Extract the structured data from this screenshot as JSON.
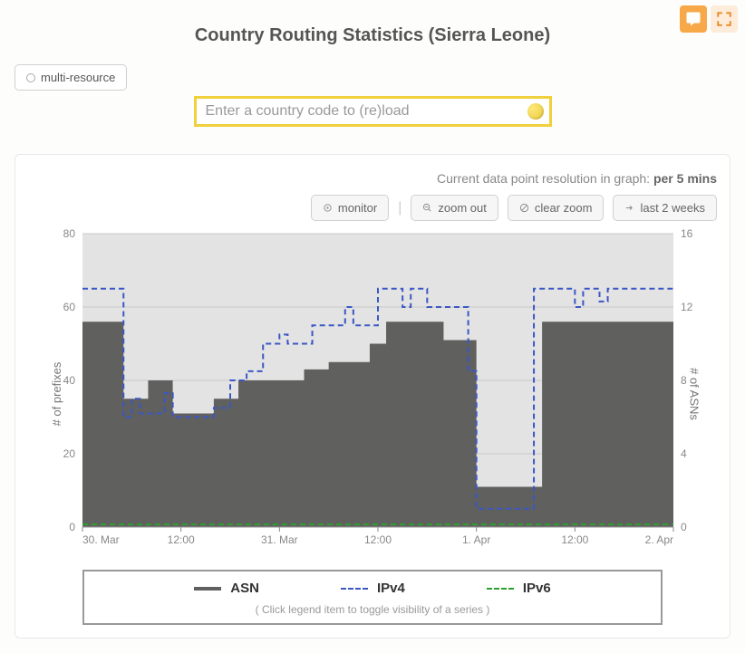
{
  "header": {
    "title": "Country Routing Statistics (Sierra Leone)"
  },
  "tag": {
    "label": "multi-resource"
  },
  "search": {
    "placeholder": "Enter a country code to (re)load",
    "value": ""
  },
  "resolution": {
    "prefix": "Current data point resolution in graph: ",
    "value": "per 5 mins"
  },
  "toolbar": {
    "monitor": "monitor",
    "zoom_out": "zoom out",
    "clear_zoom": "clear zoom",
    "last_2_weeks": "last 2 weeks"
  },
  "chart": {
    "type": "dual-axis-area-line",
    "background_color": "#ffffff",
    "plot_background_color": "#e3e3e3",
    "grid_color": "#c8c8c8",
    "label_color": "#888888",
    "label_fontsize": 12,
    "y_left": {
      "label": "# of prefixes",
      "min": 0,
      "max": 80,
      "tick_step": 20
    },
    "y_right": {
      "label": "# of ASNs",
      "min": 0,
      "max": 16,
      "tick_step": 4
    },
    "x": {
      "t_min": 0,
      "t_max": 72,
      "ticks": [
        {
          "t": 0,
          "label": "30. Mar"
        },
        {
          "t": 12,
          "label": "12:00"
        },
        {
          "t": 24,
          "label": "31. Mar"
        },
        {
          "t": 36,
          "label": "12:00"
        },
        {
          "t": 48,
          "label": "1. Apr"
        },
        {
          "t": 60,
          "label": "12:00"
        },
        {
          "t": 72,
          "label": "2. Apr"
        }
      ]
    },
    "series": {
      "asn": {
        "label": "ASN",
        "type": "area-step",
        "axis": "left",
        "color": "#60605f",
        "fill_opacity": 1.0,
        "data": [
          {
            "t": 0,
            "v": 56
          },
          {
            "t": 5,
            "v": 56
          },
          {
            "t": 5,
            "v": 35
          },
          {
            "t": 8,
            "v": 35
          },
          {
            "t": 8,
            "v": 40
          },
          {
            "t": 11,
            "v": 40
          },
          {
            "t": 11,
            "v": 31
          },
          {
            "t": 16,
            "v": 31
          },
          {
            "t": 16,
            "v": 35
          },
          {
            "t": 19,
            "v": 35
          },
          {
            "t": 19,
            "v": 40
          },
          {
            "t": 27,
            "v": 40
          },
          {
            "t": 27,
            "v": 43
          },
          {
            "t": 30,
            "v": 43
          },
          {
            "t": 30,
            "v": 45
          },
          {
            "t": 35,
            "v": 45
          },
          {
            "t": 35,
            "v": 50
          },
          {
            "t": 37,
            "v": 50
          },
          {
            "t": 37,
            "v": 56
          },
          {
            "t": 44,
            "v": 56
          },
          {
            "t": 44,
            "v": 51
          },
          {
            "t": 48,
            "v": 51
          },
          {
            "t": 48,
            "v": 11
          },
          {
            "t": 56,
            "v": 11
          },
          {
            "t": 56,
            "v": 56
          },
          {
            "t": 72,
            "v": 56
          }
        ]
      },
      "ipv4": {
        "label": "IPv4",
        "type": "line-step",
        "axis": "right",
        "color": "#3b57c4",
        "dash": "6,4",
        "line_width": 2,
        "data": [
          {
            "t": 0,
            "v": 13
          },
          {
            "t": 5,
            "v": 13
          },
          {
            "t": 5,
            "v": 6
          },
          {
            "t": 6,
            "v": 6
          },
          {
            "t": 6,
            "v": 7
          },
          {
            "t": 7,
            "v": 7
          },
          {
            "t": 7,
            "v": 6.2
          },
          {
            "t": 10,
            "v": 6.2
          },
          {
            "t": 10,
            "v": 7.3
          },
          {
            "t": 11,
            "v": 7.3
          },
          {
            "t": 11,
            "v": 6
          },
          {
            "t": 16,
            "v": 6
          },
          {
            "t": 16,
            "v": 6.5
          },
          {
            "t": 18,
            "v": 6.5
          },
          {
            "t": 18,
            "v": 8
          },
          {
            "t": 20,
            "v": 8
          },
          {
            "t": 20,
            "v": 8.5
          },
          {
            "t": 22,
            "v": 8.5
          },
          {
            "t": 22,
            "v": 10
          },
          {
            "t": 24,
            "v": 10
          },
          {
            "t": 24,
            "v": 10.5
          },
          {
            "t": 25,
            "v": 10.5
          },
          {
            "t": 25,
            "v": 10
          },
          {
            "t": 28,
            "v": 10
          },
          {
            "t": 28,
            "v": 11
          },
          {
            "t": 32,
            "v": 11
          },
          {
            "t": 32,
            "v": 12
          },
          {
            "t": 33,
            "v": 12
          },
          {
            "t": 33,
            "v": 11
          },
          {
            "t": 36,
            "v": 11
          },
          {
            "t": 36,
            "v": 13
          },
          {
            "t": 39,
            "v": 13
          },
          {
            "t": 39,
            "v": 12
          },
          {
            "t": 40,
            "v": 12
          },
          {
            "t": 40,
            "v": 13
          },
          {
            "t": 42,
            "v": 13
          },
          {
            "t": 42,
            "v": 12
          },
          {
            "t": 47,
            "v": 12
          },
          {
            "t": 47,
            "v": 8.5
          },
          {
            "t": 48,
            "v": 8.5
          },
          {
            "t": 48,
            "v": 1
          },
          {
            "t": 55,
            "v": 1
          },
          {
            "t": 55,
            "v": 13
          },
          {
            "t": 60,
            "v": 13
          },
          {
            "t": 60,
            "v": 12
          },
          {
            "t": 61,
            "v": 12
          },
          {
            "t": 61,
            "v": 13
          },
          {
            "t": 63,
            "v": 13
          },
          {
            "t": 63,
            "v": 12.3
          },
          {
            "t": 64,
            "v": 12.3
          },
          {
            "t": 64,
            "v": 13
          },
          {
            "t": 72,
            "v": 13
          }
        ]
      },
      "ipv6": {
        "label": "IPv6",
        "type": "line",
        "axis": "right",
        "color": "#2ca02c",
        "dash": "6,4",
        "line_width": 2,
        "data": [
          {
            "t": 0,
            "v": 0.15
          },
          {
            "t": 72,
            "v": 0.15
          }
        ]
      }
    },
    "legend": {
      "note": "( Click legend item to toggle visibility of a series )"
    }
  }
}
